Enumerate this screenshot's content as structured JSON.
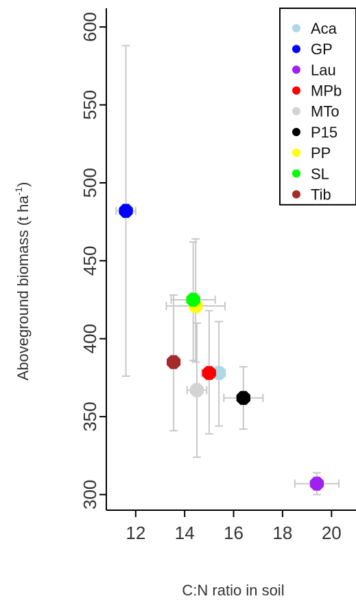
{
  "chart_data": {
    "type": "scatter",
    "xlabel": "C:N ratio in soil",
    "ylabel": "Aboveground biomass (t ha",
    "ylabel_sup": "-1",
    "ylabel_close": ")",
    "xlim": [
      10.8,
      21.0
    ],
    "ylim": [
      290,
      612
    ],
    "xticks": [
      12,
      14,
      16,
      18,
      20
    ],
    "xtick_labels": [
      "12",
      "14",
      "16",
      "18",
      "20"
    ],
    "yticks": [
      300,
      350,
      400,
      450,
      500,
      550,
      600
    ],
    "ytick_labels": [
      "300",
      "350",
      "400",
      "450",
      "500",
      "550",
      "600"
    ],
    "legend_position": "top-right",
    "series": [
      {
        "name": "Aca",
        "color": "#add8e6",
        "x": 15.4,
        "y": 378,
        "xerr": 0.25,
        "yerr_low": 344,
        "yerr_high": 411
      },
      {
        "name": "GP",
        "color": "#0000ff",
        "x": 11.6,
        "y": 482,
        "xerr": 0.4,
        "yerr_low": 376,
        "yerr_high": 588
      },
      {
        "name": "Lau",
        "color": "#a020f0",
        "x": 19.4,
        "y": 307,
        "xerr": 0.9,
        "yerr_low": 300,
        "yerr_high": 314
      },
      {
        "name": "MPb",
        "color": "#ff0000",
        "x": 15.0,
        "y": 378,
        "xerr": 0.3,
        "yerr_low": 339,
        "yerr_high": 418
      },
      {
        "name": "MTo",
        "color": "#d3d3d3",
        "x": 14.5,
        "y": 367,
        "xerr": 0.4,
        "yerr_low": 324,
        "yerr_high": 410
      },
      {
        "name": "P15",
        "color": "#000000",
        "x": 16.4,
        "y": 362,
        "xerr": 0.8,
        "yerr_low": 342,
        "yerr_high": 382
      },
      {
        "name": "PP",
        "color": "#ffff00",
        "x": 14.45,
        "y": 421,
        "xerr": 1.2,
        "yerr_low": 385,
        "yerr_high": 464
      },
      {
        "name": "SL",
        "color": "#00ff00",
        "x": 14.35,
        "y": 425,
        "xerr": 0.9,
        "yerr_low": 386,
        "yerr_high": 462
      },
      {
        "name": "Tib",
        "color": "#a52a2a",
        "x": 13.55,
        "y": 385,
        "xerr": 0.05,
        "yerr_low": 341,
        "yerr_high": 428
      }
    ]
  }
}
